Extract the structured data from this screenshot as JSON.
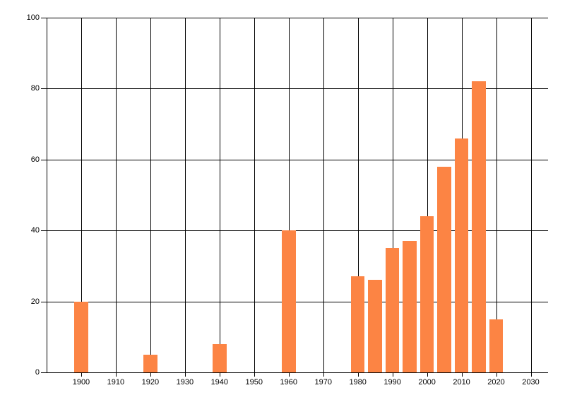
{
  "chart_data": {
    "type": "bar",
    "title": "",
    "xlabel": "",
    "ylabel": "",
    "x": [
      1900,
      1920,
      1940,
      1960,
      1980,
      1985,
      1990,
      1995,
      2000,
      2005,
      2010,
      2015,
      2020
    ],
    "values": [
      20,
      5,
      8,
      40,
      27,
      26,
      35,
      37,
      44,
      58,
      66,
      82,
      15
    ],
    "x_ticks": [
      1900,
      1910,
      1920,
      1930,
      1940,
      1950,
      1960,
      1970,
      1980,
      1990,
      2000,
      2010,
      2020,
      2030
    ],
    "y_ticks": [
      0,
      20,
      40,
      60,
      80,
      100
    ],
    "xlim": [
      1890,
      2035
    ],
    "ylim": [
      0,
      100
    ],
    "grid": true,
    "legend": false,
    "bar_width_years": 4,
    "bar_color": "#fc8444",
    "axis_color": "#000000",
    "label_color": "#000000",
    "background_color": "#ffffff"
  }
}
